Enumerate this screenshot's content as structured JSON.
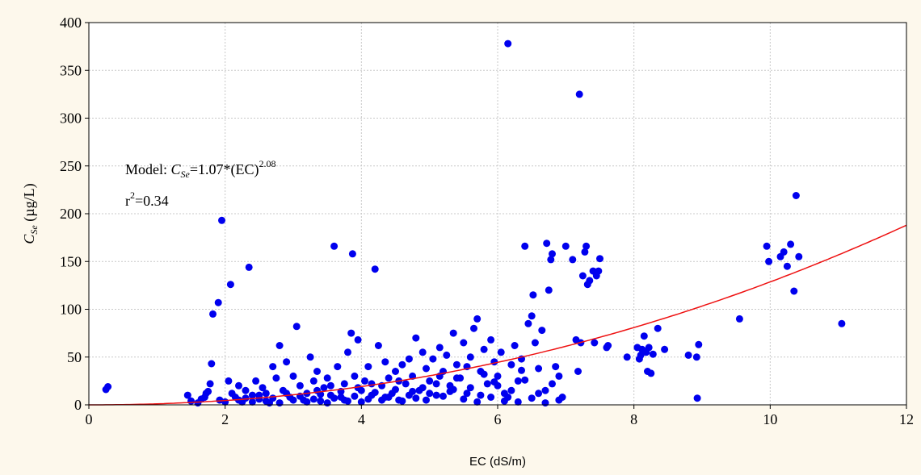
{
  "chart_data": {
    "type": "scatter",
    "xlabel": "EC (dS/m)",
    "ylabel_main": "C",
    "ylabel_sub": "Se",
    "ylabel_unit": " (µg/L)",
    "xlim": [
      0,
      12
    ],
    "ylim": [
      0,
      400
    ],
    "x_ticks": [
      0,
      2,
      4,
      6,
      8,
      10,
      12
    ],
    "y_ticks": [
      0,
      50,
      100,
      150,
      200,
      250,
      300,
      350,
      400
    ],
    "grid": true,
    "annotation": {
      "model_prefix": "Model:  ",
      "model_var": "C",
      "model_sub": "Se",
      "model_eq": "=1.07*(EC)",
      "model_exp": "2.08",
      "r_label": "r",
      "r_exp": "2",
      "r_value": "=0.34"
    },
    "colors": {
      "points": "#0000ee",
      "model_line": "#ee1111",
      "grid": "#c8c8c8",
      "background": "#fdf8ec",
      "plot_area": "#ffffff"
    },
    "model": {
      "a": 1.07,
      "b": 2.08
    },
    "series": [
      {
        "points": [
          [
            0.25,
            16
          ],
          [
            0.28,
            19
          ],
          [
            1.45,
            10
          ],
          [
            1.5,
            4
          ],
          [
            1.6,
            2
          ],
          [
            1.65,
            6
          ],
          [
            1.7,
            8
          ],
          [
            1.72,
            12
          ],
          [
            1.75,
            14
          ],
          [
            1.78,
            22
          ],
          [
            1.8,
            43
          ],
          [
            1.82,
            95
          ],
          [
            1.9,
            107
          ],
          [
            1.95,
            193
          ],
          [
            1.92,
            5
          ],
          [
            2.0,
            3
          ],
          [
            2.05,
            25
          ],
          [
            2.08,
            126
          ],
          [
            2.1,
            12
          ],
          [
            2.15,
            8
          ],
          [
            2.2,
            20
          ],
          [
            2.25,
            3
          ],
          [
            2.3,
            15
          ],
          [
            2.35,
            144
          ],
          [
            2.4,
            10
          ],
          [
            2.45,
            25
          ],
          [
            2.5,
            6
          ],
          [
            2.55,
            18
          ],
          [
            2.6,
            12
          ],
          [
            2.65,
            2
          ],
          [
            2.7,
            40
          ],
          [
            2.75,
            28
          ],
          [
            2.8,
            62
          ],
          [
            2.85,
            15
          ],
          [
            2.9,
            45
          ],
          [
            2.95,
            8
          ],
          [
            3.0,
            30
          ],
          [
            3.05,
            82
          ],
          [
            3.1,
            20
          ],
          [
            3.15,
            5
          ],
          [
            3.2,
            12
          ],
          [
            3.25,
            50
          ],
          [
            3.3,
            25
          ],
          [
            3.35,
            35
          ],
          [
            3.4,
            4
          ],
          [
            3.45,
            18
          ],
          [
            3.5,
            28
          ],
          [
            3.55,
            10
          ],
          [
            3.6,
            166
          ],
          [
            3.65,
            40
          ],
          [
            3.7,
            8
          ],
          [
            3.75,
            22
          ],
          [
            3.8,
            55
          ],
          [
            3.85,
            75
          ],
          [
            3.87,
            158
          ],
          [
            3.9,
            30
          ],
          [
            3.95,
            68
          ],
          [
            4.0,
            15
          ],
          [
            4.05,
            25
          ],
          [
            4.1,
            40
          ],
          [
            4.15,
            10
          ],
          [
            4.2,
            142
          ],
          [
            4.25,
            62
          ],
          [
            4.3,
            20
          ],
          [
            4.35,
            45
          ],
          [
            4.4,
            28
          ],
          [
            4.45,
            12
          ],
          [
            4.5,
            35
          ],
          [
            4.55,
            5
          ],
          [
            4.6,
            42
          ],
          [
            4.65,
            22
          ],
          [
            4.7,
            48
          ],
          [
            4.75,
            30
          ],
          [
            4.8,
            70
          ],
          [
            4.85,
            15
          ],
          [
            4.9,
            55
          ],
          [
            4.95,
            38
          ],
          [
            5.0,
            25
          ],
          [
            5.05,
            48
          ],
          [
            5.1,
            10
          ],
          [
            5.15,
            60
          ],
          [
            5.2,
            35
          ],
          [
            5.25,
            52
          ],
          [
            5.3,
            20
          ],
          [
            5.35,
            75
          ],
          [
            5.4,
            42
          ],
          [
            5.45,
            28
          ],
          [
            5.5,
            65
          ],
          [
            5.55,
            12
          ],
          [
            5.6,
            50
          ],
          [
            5.65,
            80
          ],
          [
            5.7,
            90
          ],
          [
            5.75,
            35
          ],
          [
            5.8,
            58
          ],
          [
            5.85,
            22
          ],
          [
            5.9,
            68
          ],
          [
            5.95,
            45
          ],
          [
            6.0,
            30
          ],
          [
            6.05,
            55
          ],
          [
            6.1,
            12
          ],
          [
            6.15,
            378
          ],
          [
            6.2,
            42
          ],
          [
            6.25,
            62
          ],
          [
            6.3,
            25
          ],
          [
            6.35,
            48
          ],
          [
            6.4,
            166
          ],
          [
            6.45,
            85
          ],
          [
            6.5,
            93
          ],
          [
            6.52,
            115
          ],
          [
            6.55,
            65
          ],
          [
            6.6,
            38
          ],
          [
            6.65,
            78
          ],
          [
            6.7,
            15
          ],
          [
            6.72,
            169
          ],
          [
            6.75,
            120
          ],
          [
            6.78,
            152
          ],
          [
            6.8,
            158
          ],
          [
            6.85,
            40
          ],
          [
            6.9,
            30
          ],
          [
            6.95,
            8
          ],
          [
            7.0,
            166
          ],
          [
            7.1,
            152
          ],
          [
            7.15,
            68
          ],
          [
            7.18,
            35
          ],
          [
            7.2,
            325
          ],
          [
            7.22,
            65
          ],
          [
            7.25,
            135
          ],
          [
            7.28,
            160
          ],
          [
            7.3,
            166
          ],
          [
            7.32,
            126
          ],
          [
            7.35,
            130
          ],
          [
            7.4,
            140
          ],
          [
            7.42,
            65
          ],
          [
            7.45,
            135
          ],
          [
            7.5,
            153
          ],
          [
            7.48,
            140
          ],
          [
            7.6,
            60
          ],
          [
            7.62,
            62
          ],
          [
            7.9,
            50
          ],
          [
            8.05,
            60
          ],
          [
            8.08,
            48
          ],
          [
            8.1,
            52
          ],
          [
            8.12,
            58
          ],
          [
            8.15,
            72
          ],
          [
            8.18,
            55
          ],
          [
            8.2,
            35
          ],
          [
            8.22,
            60
          ],
          [
            8.25,
            33
          ],
          [
            8.28,
            53
          ],
          [
            8.35,
            80
          ],
          [
            8.45,
            58
          ],
          [
            8.8,
            52
          ],
          [
            8.92,
            50
          ],
          [
            8.93,
            7
          ],
          [
            8.95,
            63
          ],
          [
            9.55,
            90
          ],
          [
            9.95,
            166
          ],
          [
            9.98,
            150
          ],
          [
            10.15,
            155
          ],
          [
            10.2,
            160
          ],
          [
            10.25,
            145
          ],
          [
            10.3,
            168
          ],
          [
            10.35,
            119
          ],
          [
            10.38,
            219
          ],
          [
            10.42,
            155
          ],
          [
            11.05,
            85
          ],
          [
            2.6,
            4
          ],
          [
            2.7,
            7
          ],
          [
            2.8,
            2
          ],
          [
            2.9,
            12
          ],
          [
            3.0,
            5
          ],
          [
            3.1,
            9
          ],
          [
            3.2,
            3
          ],
          [
            3.3,
            6
          ],
          [
            3.4,
            11
          ],
          [
            3.5,
            2
          ],
          [
            3.6,
            7
          ],
          [
            3.7,
            14
          ],
          [
            3.8,
            4
          ],
          [
            3.9,
            9
          ],
          [
            4.0,
            3
          ],
          [
            4.1,
            6
          ],
          [
            4.2,
            13
          ],
          [
            4.3,
            5
          ],
          [
            4.4,
            8
          ],
          [
            4.5,
            16
          ],
          [
            4.6,
            4
          ],
          [
            4.7,
            10
          ],
          [
            4.8,
            7
          ],
          [
            4.9,
            18
          ],
          [
            5.0,
            12
          ],
          [
            5.1,
            22
          ],
          [
            5.2,
            9
          ],
          [
            5.3,
            14
          ],
          [
            5.4,
            28
          ],
          [
            5.5,
            6
          ],
          [
            5.6,
            18
          ],
          [
            5.7,
            3
          ],
          [
            5.8,
            32
          ],
          [
            5.9,
            8
          ],
          [
            6.0,
            20
          ],
          [
            6.1,
            4
          ],
          [
            6.2,
            15
          ],
          [
            6.3,
            3
          ],
          [
            6.4,
            26
          ],
          [
            6.5,
            7
          ],
          [
            6.6,
            12
          ],
          [
            6.7,
            2
          ],
          [
            6.8,
            22
          ],
          [
            6.9,
            5
          ],
          [
            2.2,
            5
          ],
          [
            2.4,
            3
          ],
          [
            2.5,
            10
          ],
          [
            2.3,
            7
          ],
          [
            3.35,
            15
          ],
          [
            3.55,
            20
          ],
          [
            3.75,
            5
          ],
          [
            3.95,
            18
          ],
          [
            4.15,
            22
          ],
          [
            4.35,
            8
          ],
          [
            4.55,
            25
          ],
          [
            4.75,
            14
          ],
          [
            4.95,
            5
          ],
          [
            5.15,
            30
          ],
          [
            5.35,
            16
          ],
          [
            5.55,
            40
          ],
          [
            5.75,
            10
          ],
          [
            5.95,
            24
          ],
          [
            6.15,
            8
          ],
          [
            6.35,
            36
          ]
        ]
      }
    ]
  }
}
